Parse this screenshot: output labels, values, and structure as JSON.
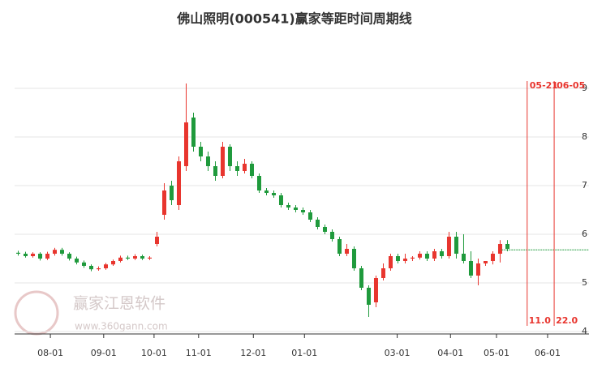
{
  "chart_data": {
    "type": "candlestick",
    "title": "佛山照明(000541)赢家等距时间周期线",
    "watermark": "赢家江恩软件",
    "watermark_url": "www.360gann.com",
    "up_color": "#e8352e",
    "down_color": "#1f9a3c",
    "open": [
      5.62,
      5.6,
      5.55,
      5.6,
      5.5,
      5.6,
      5.68,
      5.6,
      5.5,
      5.42,
      5.35,
      5.28,
      5.3,
      5.38,
      5.45,
      5.52,
      5.5,
      5.55,
      5.5,
      5.8,
      6.4,
      7.0,
      6.6,
      7.4,
      8.4,
      7.8,
      7.6,
      7.4,
      7.2,
      7.8,
      7.4,
      7.3,
      7.45,
      7.2,
      6.9,
      6.85,
      6.8,
      6.6,
      6.55,
      6.5,
      6.45,
      6.3,
      6.15,
      6.05,
      5.9,
      5.6,
      5.7,
      5.3,
      4.9,
      4.6,
      5.1,
      5.3,
      5.55,
      5.45,
      5.5,
      5.52,
      5.6,
      5.5,
      5.65,
      5.55,
      5.95,
      5.6,
      5.45,
      5.15,
      5.4,
      5.45,
      5.6,
      5.8
    ],
    "high": [
      5.66,
      5.64,
      5.63,
      5.63,
      5.64,
      5.72,
      5.72,
      5.63,
      5.54,
      5.46,
      5.38,
      5.34,
      5.41,
      5.48,
      5.56,
      5.56,
      5.59,
      5.58,
      5.55,
      6.05,
      7.05,
      7.1,
      7.6,
      9.1,
      8.5,
      7.9,
      7.7,
      7.5,
      7.9,
      7.85,
      7.5,
      7.55,
      7.5,
      7.25,
      6.95,
      6.9,
      6.85,
      6.65,
      6.6,
      6.55,
      6.5,
      6.35,
      6.2,
      6.1,
      5.95,
      5.8,
      5.75,
      5.35,
      4.95,
      5.15,
      5.4,
      5.6,
      5.6,
      5.6,
      5.55,
      5.65,
      5.65,
      5.7,
      5.7,
      6.05,
      6.05,
      6.0,
      5.65,
      5.5,
      5.45,
      5.65,
      5.88,
      5.88
    ],
    "low": [
      5.56,
      5.52,
      5.52,
      5.46,
      5.47,
      5.56,
      5.56,
      5.46,
      5.38,
      5.31,
      5.24,
      5.25,
      5.27,
      5.35,
      5.42,
      5.47,
      5.47,
      5.47,
      5.47,
      5.75,
      6.3,
      6.6,
      6.5,
      7.3,
      7.7,
      7.5,
      7.3,
      7.1,
      7.15,
      7.3,
      7.2,
      7.25,
      7.15,
      6.85,
      6.8,
      6.75,
      6.55,
      6.5,
      6.45,
      6.4,
      6.25,
      6.1,
      6.0,
      5.85,
      5.55,
      5.55,
      5.25,
      4.85,
      4.3,
      4.5,
      5.05,
      5.25,
      5.4,
      5.4,
      5.45,
      5.48,
      5.45,
      5.45,
      5.5,
      5.5,
      5.5,
      5.4,
      5.1,
      4.95,
      5.35,
      5.38,
      5.42,
      5.65
    ],
    "close": [
      5.6,
      5.55,
      5.6,
      5.5,
      5.6,
      5.68,
      5.6,
      5.5,
      5.42,
      5.35,
      5.28,
      5.3,
      5.38,
      5.45,
      5.52,
      5.5,
      5.55,
      5.5,
      5.52,
      5.95,
      6.9,
      6.7,
      7.5,
      8.3,
      7.8,
      7.6,
      7.4,
      7.2,
      7.8,
      7.4,
      7.3,
      7.45,
      7.2,
      6.9,
      6.85,
      6.8,
      6.6,
      6.55,
      6.5,
      6.45,
      6.3,
      6.15,
      6.05,
      5.9,
      5.6,
      5.7,
      5.3,
      4.9,
      4.55,
      5.1,
      5.3,
      5.55,
      5.45,
      5.5,
      5.52,
      5.6,
      5.5,
      5.65,
      5.55,
      5.95,
      5.6,
      5.45,
      5.15,
      5.4,
      5.45,
      5.6,
      5.8,
      5.7
    ],
    "xlim": [
      -0.5,
      78.17
    ],
    "xticks": [
      {
        "value": 4.4,
        "label": "08-01"
      },
      {
        "value": 11.7,
        "label": "09-01"
      },
      {
        "value": 18.6,
        "label": "10-01"
      },
      {
        "value": 24.7,
        "label": "11-01"
      },
      {
        "value": 32.2,
        "label": "12-01"
      },
      {
        "value": 39.2,
        "label": "01-01"
      },
      {
        "value": 51.9,
        "label": "03-01"
      },
      {
        "value": 59.2,
        "label": "04-01"
      },
      {
        "value": 65.5,
        "label": "05-01"
      },
      {
        "value": 72.5,
        "label": "06-01"
      }
    ],
    "ylim": [
      3.95,
      10.15
    ],
    "yticks": [
      4,
      5,
      6,
      7,
      8,
      9
    ],
    "grid": true,
    "reference_line": {
      "value": 5.68,
      "from": 66.2,
      "color": "#1f9a3c"
    },
    "cycle_lines": [
      {
        "x": 69.7,
        "date": "05-21",
        "count": "11.0"
      },
      {
        "x": 73.4,
        "date": "06-05",
        "count": "22.0"
      }
    ],
    "cycle_color": "#e8352e"
  }
}
